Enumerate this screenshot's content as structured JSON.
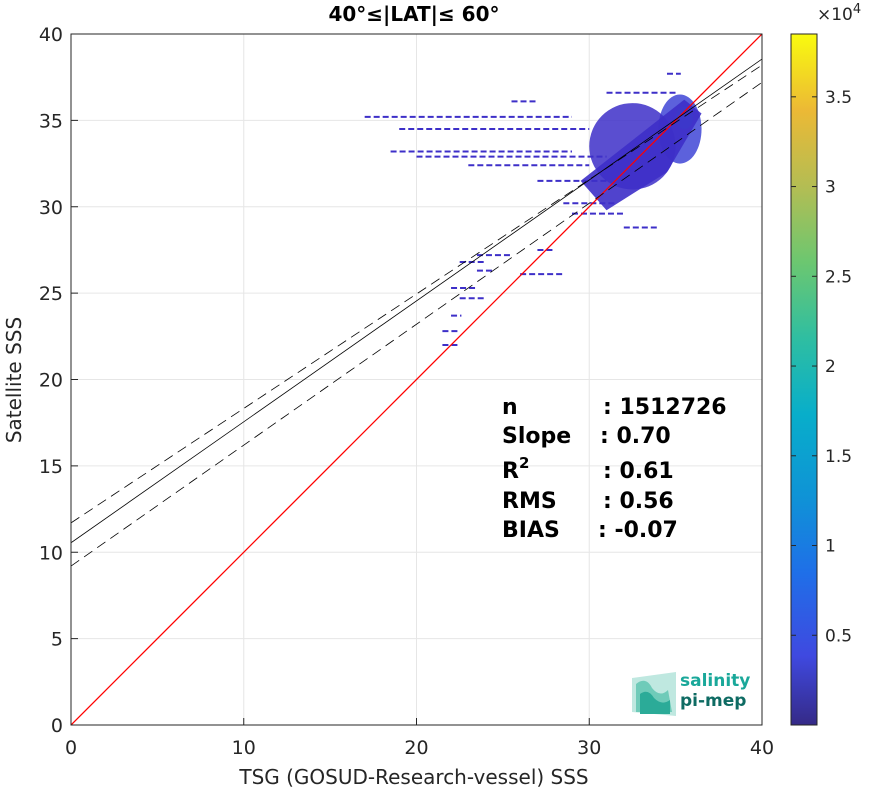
{
  "chart_data": {
    "type": "heatmap",
    "title": "40°≤|LAT|≤ 60°",
    "xlabel": "TSG (GOSUD-Research-vessel) SSS",
    "ylabel": "Satellite SSS",
    "xlim": [
      0,
      40
    ],
    "ylim": [
      0,
      40
    ],
    "xticks": [
      "0",
      "10",
      "20",
      "30",
      "40"
    ],
    "yticks": [
      "0",
      "5",
      "10",
      "15",
      "20",
      "25",
      "30",
      "35",
      "40"
    ],
    "grid": true,
    "colorbar": {
      "colormap": "parula",
      "range": [
        0,
        38500
      ],
      "exponent_label": "×10",
      "exponent": "4",
      "ticks": [
        {
          "value": 5000,
          "label": "0.5"
        },
        {
          "value": 10000,
          "label": "1"
        },
        {
          "value": 15000,
          "label": "1.5"
        },
        {
          "value": 20000,
          "label": "2"
        },
        {
          "value": 25000,
          "label": "2.5"
        },
        {
          "value": 30000,
          "label": "3"
        },
        {
          "value": 35000,
          "label": "3.5"
        }
      ]
    },
    "lines": {
      "identity": {
        "x": [
          0,
          40
        ],
        "y": [
          0,
          40
        ],
        "color": "#ff0000"
      },
      "regression": {
        "intercept": 10.55,
        "slope": 0.7,
        "color": "#000000"
      },
      "regression_upper": {
        "intercept": 11.7,
        "slope": 0.6625,
        "color": "#000000",
        "style": "dashed"
      },
      "regression_lower": {
        "intercept": 9.2,
        "slope": 0.7,
        "color": "#000000",
        "style": "dashed"
      }
    },
    "density_regions": [
      {
        "x": [
          34,
          36.5
        ],
        "y": [
          32.5,
          36.5
        ],
        "level": 0.12
      },
      {
        "x": [
          30,
          35
        ],
        "y": [
          31,
          36
        ],
        "level": 0.05
      },
      {
        "x": [
          35,
          36
        ],
        "y": [
          34.5,
          35.8
        ],
        "level": 0.35
      }
    ],
    "streaks": [
      {
        "x": [
          17,
          29
        ],
        "y": 35.2
      },
      {
        "x": [
          19,
          30
        ],
        "y": 34.5
      },
      {
        "x": [
          18.5,
          29
        ],
        "y": 33.2
      },
      {
        "x": [
          20,
          31
        ],
        "y": 32.9
      },
      {
        "x": [
          23,
          30
        ],
        "y": 32.4
      },
      {
        "x": [
          27,
          31
        ],
        "y": 31.5
      },
      {
        "x": [
          28.5,
          31.5
        ],
        "y": 30.2
      },
      {
        "x": [
          29,
          32
        ],
        "y": 29.6
      },
      {
        "x": [
          32,
          34
        ],
        "y": 28.8
      },
      {
        "x": [
          22.5,
          24
        ],
        "y": 26.8
      },
      {
        "x": [
          23.5,
          24.5
        ],
        "y": 26.3
      },
      {
        "x": [
          26,
          28.5
        ],
        "y": 26.1
      },
      {
        "x": [
          23.5,
          25.5
        ],
        "y": 27.2
      },
      {
        "x": [
          22,
          23.5
        ],
        "y": 25.3
      },
      {
        "x": [
          22.5,
          24
        ],
        "y": 24.7
      },
      {
        "x": [
          21.5,
          22.5
        ],
        "y": 22.8
      },
      {
        "x": [
          21.5,
          22.5
        ],
        "y": 22.0
      },
      {
        "x": [
          22,
          22.6
        ],
        "y": 23.7
      },
      {
        "x": [
          27,
          28
        ],
        "y": 27.5
      },
      {
        "x": [
          25.5,
          27
        ],
        "y": 36.1
      },
      {
        "x": [
          31,
          35
        ],
        "y": 36.6
      },
      {
        "x": [
          34.5,
          35.3
        ],
        "y": 37.7
      }
    ]
  },
  "stats": [
    {
      "name": "n",
      "value": ": 1512726"
    },
    {
      "name": "Slope",
      "value": ": 0.70"
    },
    {
      "name": "R",
      "sup": "2",
      "value": ": 0.61"
    },
    {
      "name": "RMS",
      "value": ": 0.56"
    },
    {
      "name": "BIAS",
      "value": ": -0.07"
    }
  ],
  "logo": {
    "line1": "salinity",
    "line2": "pi-mep",
    "color1": "#1aa89a",
    "color2": "#0e6b63"
  },
  "colors": {
    "identity_line": "#ff0000",
    "regression_line": "#000000",
    "grid": "#e6e6e6",
    "low_density": "#3d2fc8"
  }
}
